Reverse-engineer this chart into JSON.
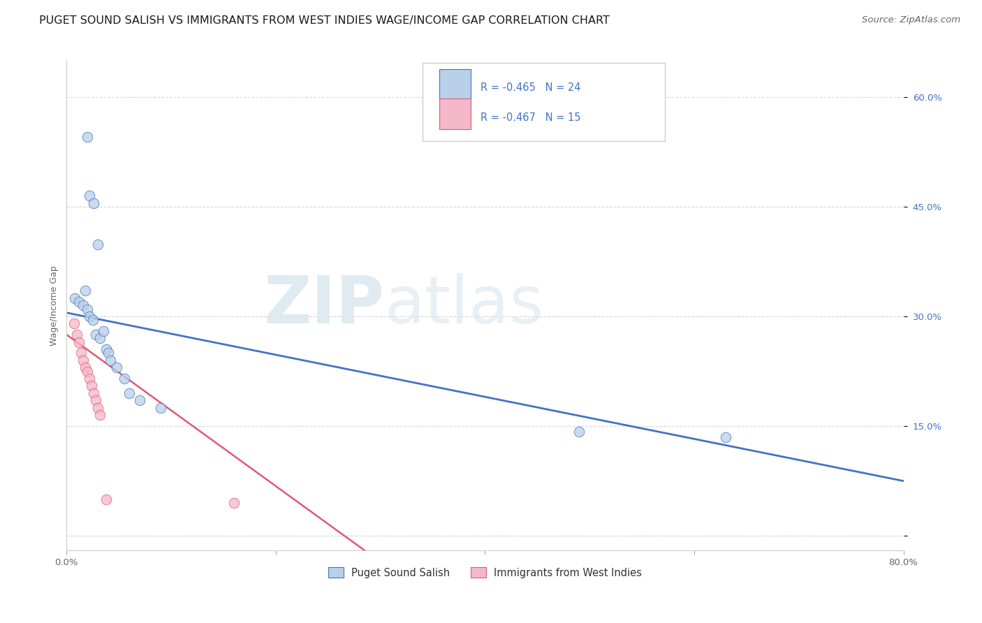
{
  "title": "PUGET SOUND SALISH VS IMMIGRANTS FROM WEST INDIES WAGE/INCOME GAP CORRELATION CHART",
  "source": "Source: ZipAtlas.com",
  "ylabel": "Wage/Income Gap",
  "xlim": [
    0.0,
    0.8
  ],
  "ylim": [
    -0.02,
    0.65
  ],
  "xticks": [
    0.0,
    0.2,
    0.4,
    0.6,
    0.8
  ],
  "xticklabels": [
    "0.0%",
    "",
    "",
    "",
    "80.0%"
  ],
  "yticks": [
    0.0,
    0.15,
    0.3,
    0.45,
    0.6
  ],
  "yticklabels": [
    "",
    "15.0%",
    "30.0%",
    "45.0%",
    "60.0%"
  ],
  "blue_label": "Puget Sound Salish",
  "pink_label": "Immigrants from West Indies",
  "blue_R": "R = -0.465",
  "blue_N": "N = 24",
  "pink_R": "R = -0.467",
  "pink_N": "N = 15",
  "blue_color": "#b8d0e8",
  "blue_line_color": "#4472c4",
  "pink_color": "#f4b8c8",
  "pink_line_color": "#e05878",
  "watermark_zip": "ZIP",
  "watermark_atlas": "atlas",
  "blue_points_x": [
    0.02,
    0.022,
    0.026,
    0.03,
    0.008,
    0.012,
    0.016,
    0.018,
    0.02,
    0.022,
    0.025,
    0.028,
    0.032,
    0.035,
    0.038,
    0.04,
    0.042,
    0.048,
    0.055,
    0.06,
    0.07,
    0.09,
    0.49,
    0.63
  ],
  "blue_points_y": [
    0.545,
    0.465,
    0.455,
    0.398,
    0.325,
    0.32,
    0.315,
    0.335,
    0.31,
    0.3,
    0.295,
    0.275,
    0.27,
    0.28,
    0.255,
    0.25,
    0.24,
    0.23,
    0.215,
    0.195,
    0.185,
    0.175,
    0.142,
    0.135
  ],
  "pink_points_x": [
    0.007,
    0.01,
    0.012,
    0.014,
    0.016,
    0.018,
    0.02,
    0.022,
    0.024,
    0.026,
    0.028,
    0.03,
    0.032,
    0.038,
    0.16
  ],
  "pink_points_y": [
    0.29,
    0.275,
    0.265,
    0.25,
    0.24,
    0.23,
    0.225,
    0.215,
    0.205,
    0.195,
    0.185,
    0.175,
    0.165,
    0.05,
    0.045
  ],
  "blue_line_x0": 0.0,
  "blue_line_x1": 0.8,
  "blue_line_y0": 0.305,
  "blue_line_y1": 0.075,
  "pink_line_x0": 0.0,
  "pink_line_x1": 0.285,
  "pink_line_y0": 0.275,
  "pink_line_y1": -0.02,
  "title_fontsize": 11.5,
  "axis_label_fontsize": 9,
  "tick_fontsize": 9.5,
  "legend_fontsize": 10.5,
  "source_fontsize": 9.5
}
